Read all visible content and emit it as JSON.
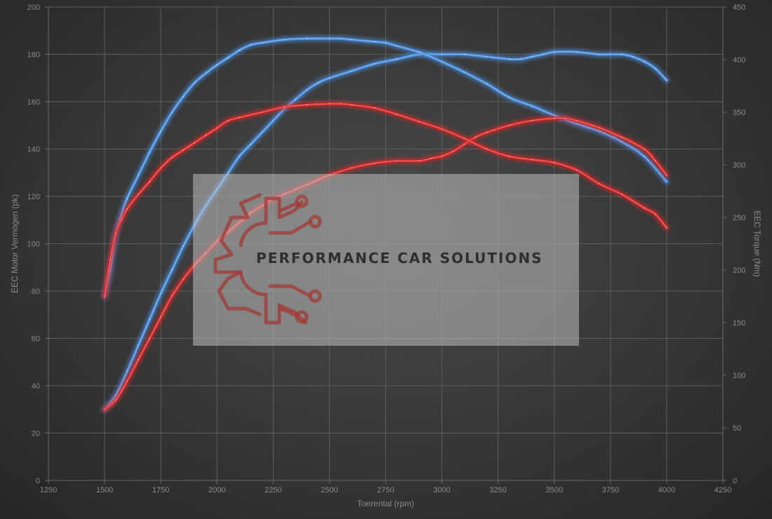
{
  "watermark": {
    "brand_text": "PERFORMANCE CAR SOLUTIONS"
  },
  "colors": {
    "blue": "#4a90e0",
    "red": "#e02a2a",
    "tick": "#8a8a8a",
    "grid": "#5d5d5d"
  },
  "chart_data": {
    "type": "line",
    "title": "",
    "xlabel": "Toerental (rpm)",
    "ylabel_left": "EEC Motor Vermogen (pk)",
    "ylabel_right": "EEC Torque (Nm)",
    "xlim": [
      1250,
      4250
    ],
    "ylim_left": [
      0,
      200
    ],
    "ylim_right": [
      0,
      450
    ],
    "x_ticks": [
      1250,
      1500,
      1750,
      2000,
      2250,
      2500,
      2750,
      3000,
      3250,
      3500,
      3750,
      4000,
      4250
    ],
    "y_ticks_left": [
      0,
      20,
      40,
      60,
      80,
      100,
      120,
      140,
      160,
      180,
      200
    ],
    "y_ticks_right": [
      0,
      50,
      100,
      150,
      200,
      250,
      300,
      350,
      400,
      450
    ],
    "grid": true,
    "series": [
      {
        "color": "blue",
        "axis": "left",
        "points": [
          [
            1500,
            30
          ],
          [
            1550,
            36
          ],
          [
            1600,
            46
          ],
          [
            1650,
            57
          ],
          [
            1700,
            68
          ],
          [
            1750,
            79
          ],
          [
            1800,
            89
          ],
          [
            1850,
            99
          ],
          [
            1900,
            108
          ],
          [
            1950,
            116
          ],
          [
            2000,
            123
          ],
          [
            2050,
            130
          ],
          [
            2100,
            137
          ],
          [
            2150,
            142
          ],
          [
            2200,
            147
          ],
          [
            2250,
            152
          ],
          [
            2300,
            157
          ],
          [
            2350,
            161
          ],
          [
            2400,
            165
          ],
          [
            2450,
            168
          ],
          [
            2500,
            170
          ],
          [
            2600,
            173
          ],
          [
            2700,
            176
          ],
          [
            2800,
            178
          ],
          [
            2900,
            180
          ],
          [
            3000,
            180
          ],
          [
            3100,
            180
          ],
          [
            3200,
            179
          ],
          [
            3300,
            178
          ],
          [
            3350,
            178
          ],
          [
            3400,
            179
          ],
          [
            3450,
            180
          ],
          [
            3500,
            181
          ],
          [
            3600,
            181
          ],
          [
            3700,
            180
          ],
          [
            3800,
            180
          ],
          [
            3850,
            179
          ],
          [
            3900,
            177
          ],
          [
            3950,
            174
          ],
          [
            4000,
            169
          ]
        ]
      },
      {
        "color": "blue",
        "axis": "right",
        "points": [
          [
            1500,
            175
          ],
          [
            1525,
            200
          ],
          [
            1550,
            235
          ],
          [
            1575,
            253
          ],
          [
            1600,
            268
          ],
          [
            1650,
            290
          ],
          [
            1700,
            312
          ],
          [
            1750,
            332
          ],
          [
            1800,
            350
          ],
          [
            1850,
            365
          ],
          [
            1900,
            378
          ],
          [
            1950,
            387
          ],
          [
            2000,
            395
          ],
          [
            2050,
            402
          ],
          [
            2100,
            409
          ],
          [
            2150,
            414
          ],
          [
            2200,
            416
          ],
          [
            2300,
            419
          ],
          [
            2400,
            420
          ],
          [
            2500,
            420
          ],
          [
            2550,
            420
          ],
          [
            2600,
            419
          ],
          [
            2700,
            417
          ],
          [
            2750,
            416
          ],
          [
            2800,
            413
          ],
          [
            2900,
            407
          ],
          [
            3000,
            398
          ],
          [
            3100,
            388
          ],
          [
            3200,
            377
          ],
          [
            3300,
            364
          ],
          [
            3400,
            356
          ],
          [
            3500,
            347
          ],
          [
            3600,
            339
          ],
          [
            3700,
            332
          ],
          [
            3800,
            322
          ],
          [
            3900,
            308
          ],
          [
            4000,
            284
          ]
        ]
      },
      {
        "color": "red",
        "axis": "left",
        "points": [
          [
            1500,
            30
          ],
          [
            1550,
            34
          ],
          [
            1600,
            42
          ],
          [
            1650,
            51
          ],
          [
            1700,
            60
          ],
          [
            1750,
            69
          ],
          [
            1800,
            78
          ],
          [
            1850,
            85
          ],
          [
            1900,
            91
          ],
          [
            1950,
            96
          ],
          [
            2000,
            101
          ],
          [
            2050,
            105
          ],
          [
            2100,
            109
          ],
          [
            2150,
            113
          ],
          [
            2200,
            116
          ],
          [
            2250,
            119
          ],
          [
            2300,
            121
          ],
          [
            2350,
            123
          ],
          [
            2400,
            125
          ],
          [
            2450,
            127
          ],
          [
            2500,
            129
          ],
          [
            2600,
            132
          ],
          [
            2700,
            134
          ],
          [
            2800,
            135
          ],
          [
            2900,
            135
          ],
          [
            2950,
            136
          ],
          [
            3000,
            137
          ],
          [
            3050,
            139
          ],
          [
            3100,
            142
          ],
          [
            3150,
            145
          ],
          [
            3200,
            147
          ],
          [
            3300,
            150
          ],
          [
            3400,
            152
          ],
          [
            3500,
            153
          ],
          [
            3550,
            153
          ],
          [
            3600,
            152
          ],
          [
            3700,
            149
          ],
          [
            3800,
            145
          ],
          [
            3900,
            140
          ],
          [
            3950,
            135
          ],
          [
            4000,
            129
          ]
        ]
      },
      {
        "color": "red",
        "axis": "right",
        "points": [
          [
            1500,
            175
          ],
          [
            1525,
            210
          ],
          [
            1550,
            235
          ],
          [
            1575,
            248
          ],
          [
            1600,
            258
          ],
          [
            1650,
            272
          ],
          [
            1700,
            284
          ],
          [
            1750,
            297
          ],
          [
            1800,
            307
          ],
          [
            1850,
            314
          ],
          [
            1900,
            321
          ],
          [
            1950,
            328
          ],
          [
            2000,
            335
          ],
          [
            2050,
            342
          ],
          [
            2100,
            345
          ],
          [
            2200,
            350
          ],
          [
            2300,
            355
          ],
          [
            2400,
            357
          ],
          [
            2500,
            358
          ],
          [
            2550,
            358
          ],
          [
            2600,
            357
          ],
          [
            2700,
            354
          ],
          [
            2800,
            348
          ],
          [
            2900,
            341
          ],
          [
            3000,
            334
          ],
          [
            3100,
            325
          ],
          [
            3200,
            315
          ],
          [
            3300,
            308
          ],
          [
            3400,
            305
          ],
          [
            3500,
            302
          ],
          [
            3600,
            295
          ],
          [
            3700,
            282
          ],
          [
            3800,
            272
          ],
          [
            3900,
            259
          ],
          [
            3950,
            253
          ],
          [
            4000,
            240
          ]
        ]
      }
    ]
  }
}
